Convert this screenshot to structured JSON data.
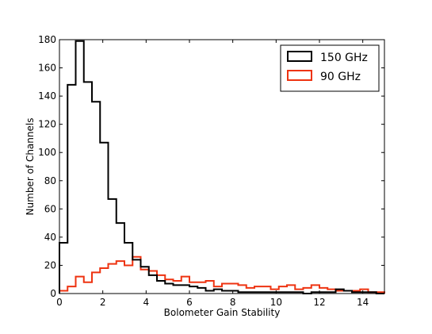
{
  "chart_data": {
    "type": "histogram",
    "title": "",
    "xlabel": "Bolometer Gain Stability",
    "ylabel": "Number of Channels",
    "xlim": [
      0,
      15
    ],
    "ylim": [
      0,
      180
    ],
    "xticks": [
      0,
      2,
      4,
      6,
      8,
      10,
      12,
      14
    ],
    "yticks": [
      0,
      20,
      40,
      60,
      80,
      100,
      120,
      140,
      160,
      180
    ],
    "grid": false,
    "legend_position": "top-right",
    "bin_edges": [
      0,
      0.375,
      0.75,
      1.125,
      1.5,
      1.875,
      2.25,
      2.625,
      3.0,
      3.375,
      3.75,
      4.125,
      4.5,
      4.875,
      5.25,
      5.625,
      6.0,
      6.375,
      6.75,
      7.125,
      7.5,
      7.875,
      8.25,
      8.625,
      9.0,
      9.375,
      9.75,
      10.125,
      10.5,
      10.875,
      11.25,
      11.625,
      12.0,
      12.375,
      12.75,
      13.125,
      13.5,
      13.875,
      14.25,
      14.625,
      15.0
    ],
    "series": [
      {
        "name": "150 GHz",
        "color": "#000000",
        "values": [
          36,
          148,
          179,
          150,
          136,
          107,
          67,
          50,
          36,
          24,
          19,
          13,
          9,
          7,
          6,
          6,
          5,
          4,
          2,
          3,
          2,
          2,
          1,
          1,
          1,
          1,
          1,
          1,
          1,
          1,
          0,
          1,
          1,
          1,
          3,
          2,
          1,
          1,
          1,
          0
        ]
      },
      {
        "name": "90 GHz",
        "color": "#ee3311",
        "values": [
          2,
          5,
          12,
          8,
          15,
          18,
          21,
          23,
          20,
          26,
          17,
          16,
          13,
          10,
          9,
          12,
          8,
          8,
          9,
          5,
          7,
          7,
          6,
          4,
          5,
          5,
          3,
          5,
          6,
          3,
          4,
          6,
          4,
          3,
          2,
          2,
          2,
          3,
          1,
          1
        ]
      }
    ]
  }
}
